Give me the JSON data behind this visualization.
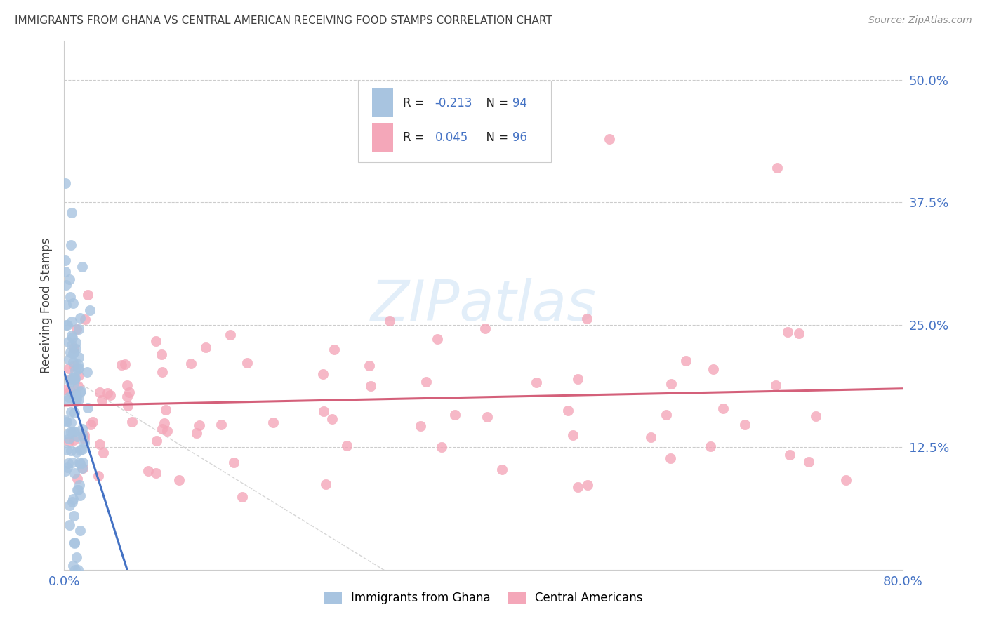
{
  "title": "IMMIGRANTS FROM GHANA VS CENTRAL AMERICAN RECEIVING FOOD STAMPS CORRELATION CHART",
  "source": "Source: ZipAtlas.com",
  "ylabel": "Receiving Food Stamps",
  "ytick_vals": [
    0.0,
    0.125,
    0.25,
    0.375,
    0.5
  ],
  "ytick_labels": [
    "",
    "12.5%",
    "25.0%",
    "37.5%",
    "50.0%"
  ],
  "xlim": [
    0.0,
    0.8
  ],
  "ylim": [
    0.0,
    0.54
  ],
  "legend1_R": "-0.213",
  "legend1_N": "94",
  "legend2_R": "0.045",
  "legend2_N": "96",
  "color_ghana": "#a8c4e0",
  "color_ghana_edge": "#7aaacf",
  "color_ghana_line": "#4472c4",
  "color_central": "#f4a7b9",
  "color_central_edge": "#e07090",
  "color_central_line": "#d4607a",
  "color_axis_labels": "#4472c4",
  "color_title": "#404040",
  "color_source": "#909090",
  "color_grid": "#cccccc",
  "watermark_color": "#d0e4f5",
  "watermark_alpha": 0.6,
  "ghana_seed": 1234,
  "central_seed": 5678
}
